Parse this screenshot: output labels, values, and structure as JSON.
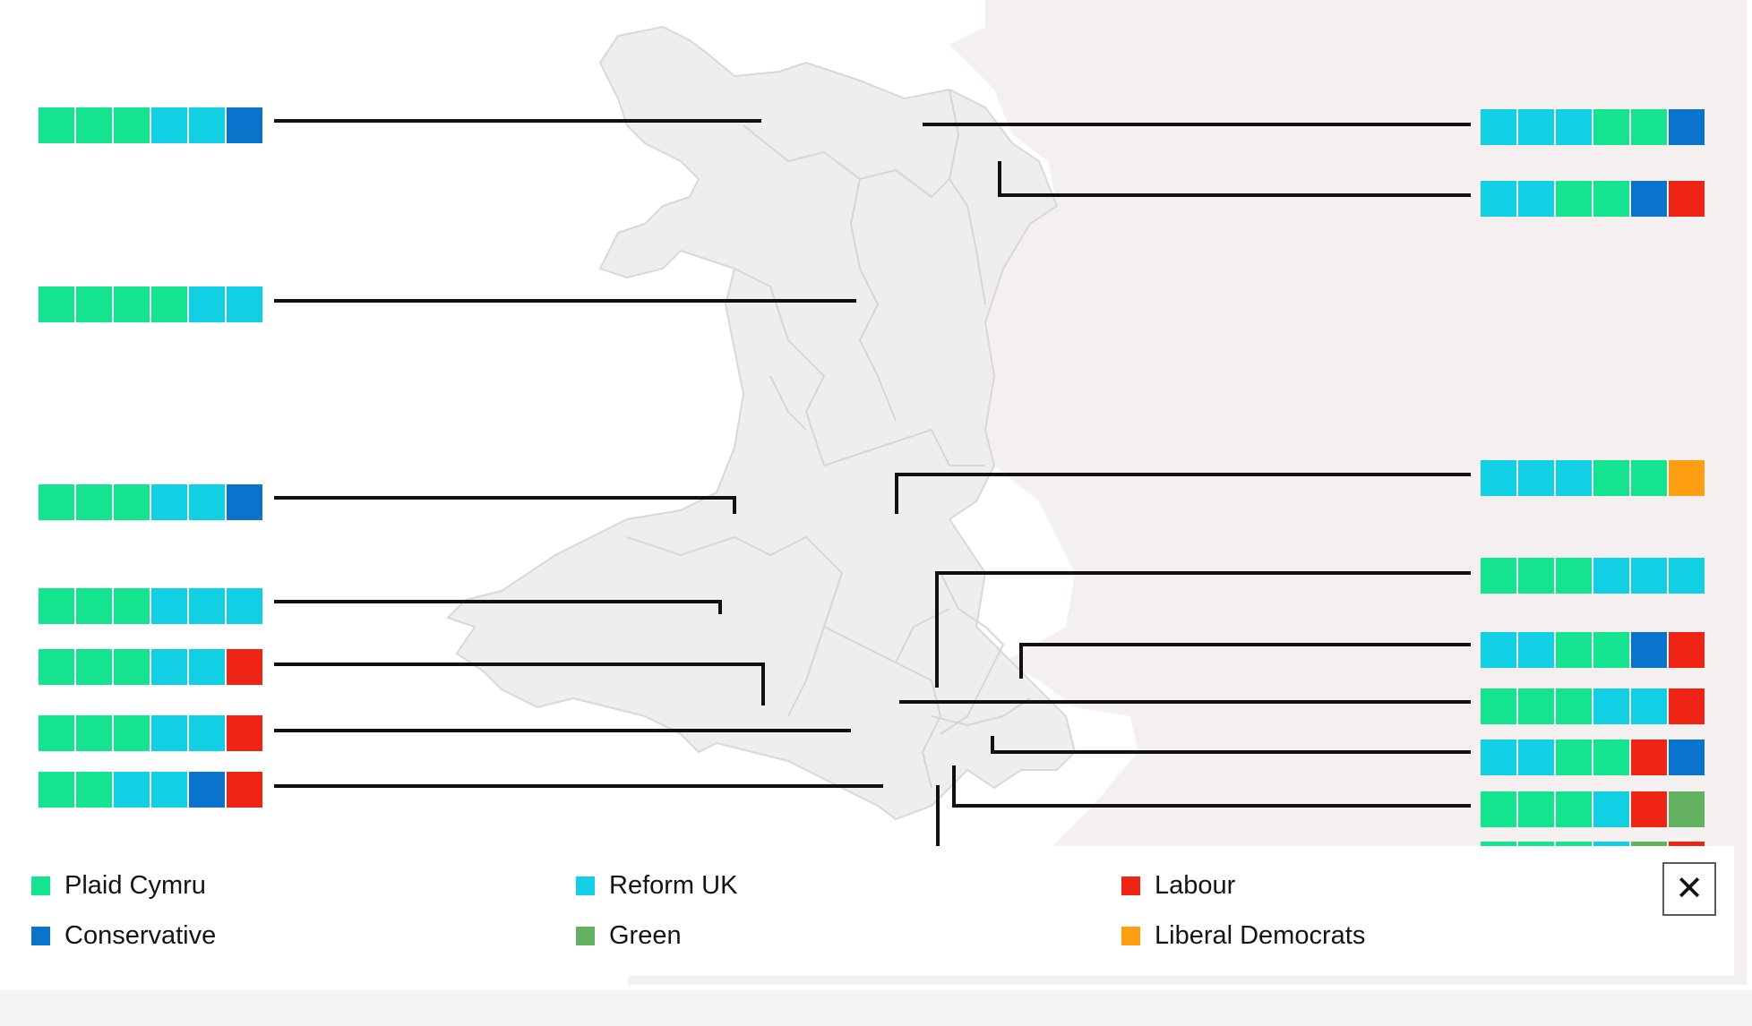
{
  "colors": {
    "plaid_cymru": "#14e48f",
    "reform_uk": "#12d0e3",
    "labour": "#ee2515",
    "conservative": "#0a73cb",
    "green": "#63b261",
    "liberal_democrats": "#fd9f10",
    "land": "#eeeeee",
    "england": "#f4f0f0"
  },
  "legend": {
    "items": [
      {
        "key": "plaid_cymru",
        "label": "Plaid Cymru",
        "color": "#14e48f"
      },
      {
        "key": "reform_uk",
        "label": "Reform UK",
        "color": "#12d0e3"
      },
      {
        "key": "labour",
        "label": "Labour",
        "color": "#ee2515"
      },
      {
        "key": "conservative",
        "label": "Conservative",
        "color": "#0a73cb"
      },
      {
        "key": "green",
        "label": "Green",
        "color": "#63b261"
      },
      {
        "key": "liberal_democrats",
        "label": "Liberal Democrats",
        "color": "#fd9f10"
      }
    ],
    "close_icon": "close-icon"
  },
  "constituencies": {
    "left": [
      {
        "seats": [
          "plaid_cymru",
          "plaid_cymru",
          "plaid_cymru",
          "reform_uk",
          "reform_uk",
          "conservative"
        ]
      },
      {
        "seats": [
          "plaid_cymru",
          "plaid_cymru",
          "plaid_cymru",
          "plaid_cymru",
          "reform_uk",
          "reform_uk"
        ]
      },
      {
        "seats": [
          "plaid_cymru",
          "plaid_cymru",
          "plaid_cymru",
          "reform_uk",
          "reform_uk",
          "conservative"
        ]
      },
      {
        "seats": [
          "plaid_cymru",
          "plaid_cymru",
          "plaid_cymru",
          "reform_uk",
          "reform_uk",
          "reform_uk"
        ]
      },
      {
        "seats": [
          "plaid_cymru",
          "plaid_cymru",
          "plaid_cymru",
          "reform_uk",
          "reform_uk",
          "labour"
        ]
      },
      {
        "seats": [
          "plaid_cymru",
          "plaid_cymru",
          "plaid_cymru",
          "reform_uk",
          "reform_uk",
          "labour"
        ]
      },
      {
        "seats": [
          "plaid_cymru",
          "plaid_cymru",
          "reform_uk",
          "reform_uk",
          "conservative",
          "labour"
        ]
      }
    ],
    "right": [
      {
        "seats": [
          "reform_uk",
          "reform_uk",
          "reform_uk",
          "plaid_cymru",
          "plaid_cymru",
          "conservative"
        ]
      },
      {
        "seats": [
          "reform_uk",
          "reform_uk",
          "plaid_cymru",
          "plaid_cymru",
          "conservative",
          "labour"
        ]
      },
      {
        "seats": [
          "reform_uk",
          "reform_uk",
          "reform_uk",
          "plaid_cymru",
          "plaid_cymru",
          "liberal_democrats"
        ]
      },
      {
        "seats": [
          "plaid_cymru",
          "plaid_cymru",
          "plaid_cymru",
          "reform_uk",
          "reform_uk",
          "reform_uk"
        ]
      },
      {
        "seats": [
          "reform_uk",
          "reform_uk",
          "plaid_cymru",
          "plaid_cymru",
          "conservative",
          "labour"
        ]
      },
      {
        "seats": [
          "plaid_cymru",
          "plaid_cymru",
          "plaid_cymru",
          "reform_uk",
          "reform_uk",
          "labour"
        ]
      },
      {
        "seats": [
          "reform_uk",
          "reform_uk",
          "plaid_cymru",
          "plaid_cymru",
          "labour",
          "conservative"
        ]
      },
      {
        "seats": [
          "plaid_cymru",
          "plaid_cymru",
          "plaid_cymru",
          "reform_uk",
          "labour",
          "green"
        ]
      },
      {
        "seats": [
          "plaid_cymru",
          "plaid_cymru",
          "plaid_cymru",
          "reform_uk",
          "green",
          "labour"
        ]
      }
    ]
  }
}
